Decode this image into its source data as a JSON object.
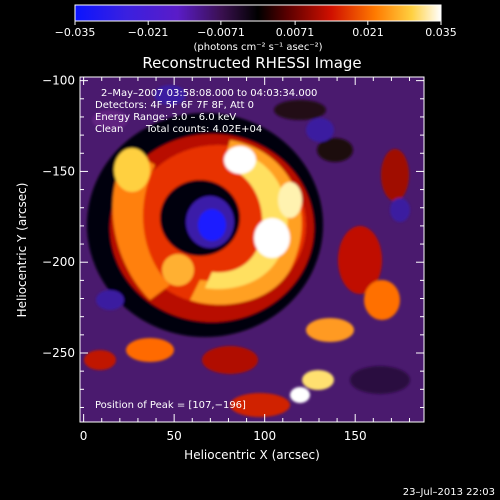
{
  "chart_data": {
    "type": "heatmap",
    "title": "Reconstructed RHESSI Image",
    "xlabel": "Heliocentric X (arcsec)",
    "ylabel": "Heliocentric Y (arcsec)",
    "xlim": [
      -2,
      188
    ],
    "ylim": [
      -288,
      -98
    ],
    "x_ticks": [
      0,
      50,
      100,
      150
    ],
    "y_ticks": [
      -100,
      -150,
      -200,
      -250
    ],
    "x_tick_labels": [
      "0",
      "50",
      "100",
      "150"
    ],
    "y_tick_labels": [
      "−100",
      "−150",
      "−200",
      "−250"
    ],
    "colorbar": {
      "min": -0.035,
      "max": 0.035,
      "tick_labels": [
        "−0.035",
        "−0.021",
        "−0.0071",
        "0.0071",
        "0.021",
        "0.035"
      ],
      "ticks": [
        -0.035,
        -0.021,
        -0.0071,
        0.0071,
        0.021,
        0.035
      ],
      "unit_label": "(photons cm⁻² s⁻¹ asec⁻²)",
      "colors": [
        "#0a14ff",
        "#5a1cc8",
        "#3a1050",
        "#000000",
        "#5a0000",
        "#d01000",
        "#ff7a00",
        "#ffd040",
        "#ffffff"
      ]
    },
    "annotations": [
      "2–May–2007 03:58:08.000 to 04:03:34.000",
      "Detectors: 4F 5F 6F 7F 8F, Att 0",
      "Energy Range: 3.0 – 6.0 keV",
      "Clean",
      "Total counts: 4.02E+04"
    ],
    "peak_label": "Position of Peak = [107,−196]",
    "peak": [
      107,
      -196
    ],
    "grid": false
  },
  "footer": {
    "timestamp": "23–Jul–2013 22:03"
  }
}
